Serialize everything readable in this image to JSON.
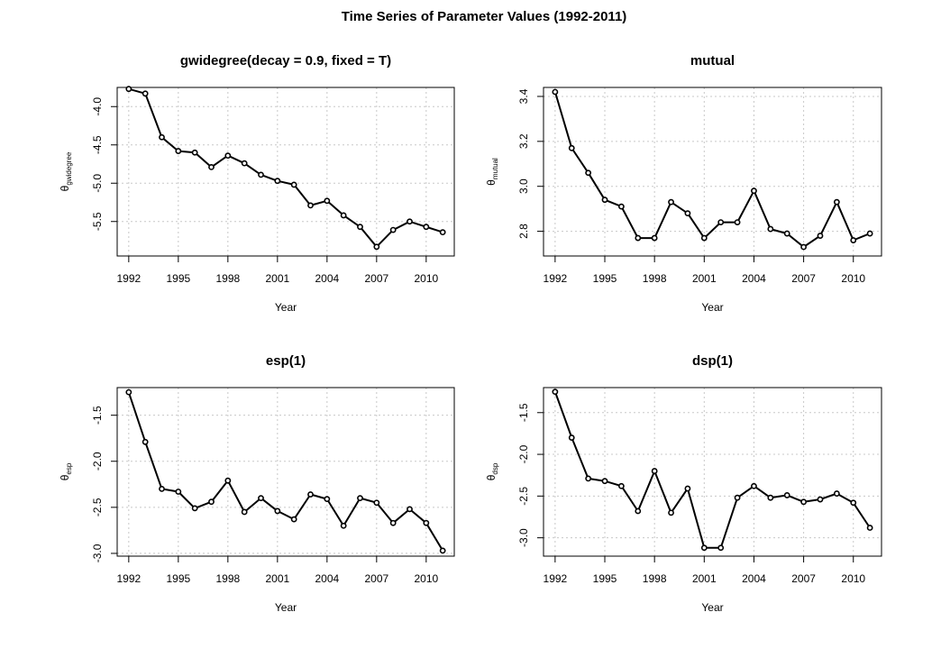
{
  "figure": {
    "title": "Time Series of Parameter Values (1992-2011)"
  },
  "chart_data": [
    {
      "type": "line",
      "title": "gwidegree(decay = 0.9, fixed = T)",
      "xlabel": "Year",
      "ylabel_symbol": "θ",
      "ylabel_subscript": "gwidegree",
      "x": [
        1992,
        1993,
        1994,
        1995,
        1996,
        1997,
        1998,
        1999,
        2000,
        2001,
        2002,
        2003,
        2004,
        2005,
        2006,
        2007,
        2008,
        2009,
        2010,
        2011
      ],
      "values": [
        -3.77,
        -3.83,
        -4.4,
        -4.58,
        -4.6,
        -4.79,
        -4.64,
        -4.74,
        -4.89,
        -4.97,
        -5.02,
        -5.29,
        -5.23,
        -5.42,
        -5.57,
        -5.83,
        -5.61,
        -5.5,
        -5.57,
        -5.64
      ],
      "xlim": [
        1991.3,
        2011.7
      ],
      "ylim": [
        -5.95,
        -3.75
      ],
      "xticks": [
        1992,
        1995,
        1998,
        2001,
        2004,
        2007,
        2010
      ],
      "yticks": [
        -4.0,
        -4.5,
        -5.0,
        -5.5
      ],
      "ytick_labels": [
        "-4.0",
        "-4.5",
        "-5.0",
        "-5.5"
      ],
      "grid": true
    },
    {
      "type": "line",
      "title": "mutual",
      "xlabel": "Year",
      "ylabel_symbol": "θ",
      "ylabel_subscript": "mutual",
      "x": [
        1992,
        1993,
        1994,
        1995,
        1996,
        1997,
        1998,
        1999,
        2000,
        2001,
        2002,
        2003,
        2004,
        2005,
        2006,
        2007,
        2008,
        2009,
        2010,
        2011
      ],
      "values": [
        3.42,
        3.17,
        3.06,
        2.94,
        2.91,
        2.77,
        2.77,
        2.93,
        2.88,
        2.77,
        2.84,
        2.84,
        2.98,
        2.81,
        2.79,
        2.73,
        2.78,
        2.93,
        2.76,
        2.79
      ],
      "xlim": [
        1991.3,
        2011.7
      ],
      "ylim": [
        2.69,
        3.44
      ],
      "xticks": [
        1992,
        1995,
        1998,
        2001,
        2004,
        2007,
        2010
      ],
      "yticks": [
        2.8,
        3.0,
        3.2,
        3.4
      ],
      "ytick_labels": [
        "2.8",
        "3.0",
        "3.2",
        "3.4"
      ],
      "grid": true
    },
    {
      "type": "line",
      "title": "esp(1)",
      "xlabel": "Year",
      "ylabel_symbol": "θ",
      "ylabel_subscript": "esp",
      "x": [
        1992,
        1993,
        1994,
        1995,
        1996,
        1997,
        1998,
        1999,
        2000,
        2001,
        2002,
        2003,
        2004,
        2005,
        2006,
        2007,
        2008,
        2009,
        2010,
        2011
      ],
      "values": [
        -1.25,
        -1.79,
        -2.3,
        -2.33,
        -2.51,
        -2.44,
        -2.21,
        -2.55,
        -2.4,
        -2.54,
        -2.63,
        -2.36,
        -2.41,
        -2.7,
        -2.4,
        -2.45,
        -2.67,
        -2.52,
        -2.67,
        -2.97
      ],
      "xlim": [
        1991.3,
        2011.7
      ],
      "ylim": [
        -3.03,
        -1.2
      ],
      "xticks": [
        1992,
        1995,
        1998,
        2001,
        2004,
        2007,
        2010
      ],
      "yticks": [
        -1.5,
        -2.0,
        -2.5,
        -3.0
      ],
      "ytick_labels": [
        "-1.5",
        "-2.0",
        "-2.5",
        "-3.0"
      ],
      "grid": true
    },
    {
      "type": "line",
      "title": "dsp(1)",
      "xlabel": "Year",
      "ylabel_symbol": "θ",
      "ylabel_subscript": "dsp",
      "x": [
        1992,
        1993,
        1994,
        1995,
        1996,
        1997,
        1998,
        1999,
        2000,
        2001,
        2002,
        2003,
        2004,
        2005,
        2006,
        2007,
        2008,
        2009,
        2010,
        2011
      ],
      "values": [
        -1.25,
        -1.8,
        -2.29,
        -2.32,
        -2.38,
        -2.68,
        -2.2,
        -2.7,
        -2.41,
        -3.12,
        -3.12,
        -2.52,
        -2.38,
        -2.52,
        -2.49,
        -2.57,
        -2.54,
        -2.47,
        -2.58,
        -2.88
      ],
      "xlim": [
        1991.3,
        2011.7
      ],
      "ylim": [
        -3.22,
        -1.2
      ],
      "xticks": [
        1992,
        1995,
        1998,
        2001,
        2004,
        2007,
        2010
      ],
      "yticks": [
        -1.5,
        -2.0,
        -2.5,
        -3.0
      ],
      "ytick_labels": [
        "-1.5",
        "-2.0",
        "-2.5",
        "-3.0"
      ],
      "grid": true
    }
  ]
}
